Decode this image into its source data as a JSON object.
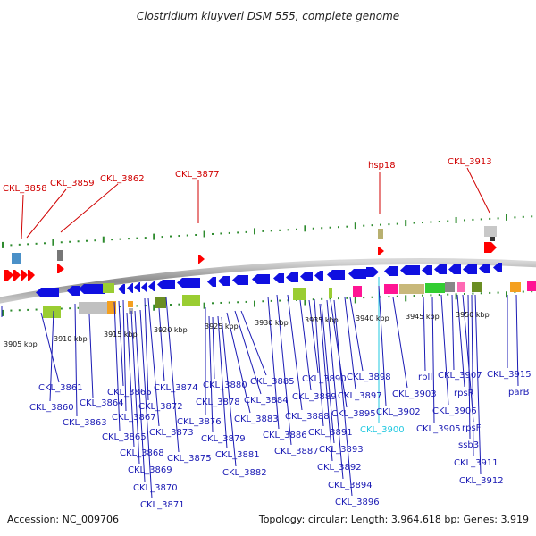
{
  "title": "Clostridium kluyveri DSM 555, complete genome",
  "footer": {
    "accession": "Accession: NC_009706",
    "info": "Topology: circular; Length: 3,964,618 bp; Genes: 3,919"
  },
  "colors": {
    "backbone": "#9a9a9a",
    "tick": "#2e8b2e",
    "forward_strand": "#1010e0",
    "top_label": "#d00000",
    "bottom_label": "#1a1ab4",
    "highlight_label": "#22c8e0"
  },
  "scale_labels": [
    "3905 kbp",
    "3910 kbp",
    "3915 kbp",
    "3920 kbp",
    "3925 kbp",
    "3930 kbp",
    "3935 kbp",
    "3940 kbp",
    "3945 kbp",
    "3950 kbp"
  ],
  "top_labels": [
    {
      "text": "CKL_3858",
      "color": "red"
    },
    {
      "text": "CKL_3859",
      "color": "red"
    },
    {
      "text": "CKL_3862",
      "color": "red"
    },
    {
      "text": "CKL_3877",
      "color": "red"
    },
    {
      "text": "hsp18",
      "color": "red"
    },
    {
      "text": "CKL_3913",
      "color": "red"
    }
  ],
  "bottom_labels": [
    {
      "text": "CKL_3860"
    },
    {
      "text": "CKL_3861"
    },
    {
      "text": "CKL_3863"
    },
    {
      "text": "CKL_3864"
    },
    {
      "text": "CKL_3865"
    },
    {
      "text": "CKL_3866"
    },
    {
      "text": "CKL_3867"
    },
    {
      "text": "CKL_3868"
    },
    {
      "text": "CKL_3869"
    },
    {
      "text": "CKL_3870"
    },
    {
      "text": "CKL_3871"
    },
    {
      "text": "CKL_3872"
    },
    {
      "text": "CKL_3873"
    },
    {
      "text": "CKL_3874"
    },
    {
      "text": "CKL_3875"
    },
    {
      "text": "CKL_3876"
    },
    {
      "text": "CKL_3878"
    },
    {
      "text": "CKL_3879"
    },
    {
      "text": "CKL_3880"
    },
    {
      "text": "CKL_3881"
    },
    {
      "text": "CKL_3882"
    },
    {
      "text": "CKL_3883"
    },
    {
      "text": "CKL_3884"
    },
    {
      "text": "CKL_3885"
    },
    {
      "text": "CKL_3886"
    },
    {
      "text": "CKL_3887"
    },
    {
      "text": "CKL_3888"
    },
    {
      "text": "CKL_3889"
    },
    {
      "text": "CKL_3890"
    },
    {
      "text": "CKL_3891"
    },
    {
      "text": "CKL_3892"
    },
    {
      "text": "CKL_3893"
    },
    {
      "text": "CKL_3894"
    },
    {
      "text": "CKL_3895"
    },
    {
      "text": "CKL_3896"
    },
    {
      "text": "CKL_3897"
    },
    {
      "text": "CKL_3898"
    },
    {
      "text": "CKL_3900",
      "highlight": true
    },
    {
      "text": "CKL_3902"
    },
    {
      "text": "CKL_3903"
    },
    {
      "text": "rplI"
    },
    {
      "text": "CKL_3905"
    },
    {
      "text": "CKL_3906"
    },
    {
      "text": "CKL_3907"
    },
    {
      "text": "rpsR"
    },
    {
      "text": "rpsF"
    },
    {
      "text": "ssb3"
    },
    {
      "text": "CKL_3911"
    },
    {
      "text": "CKL_3912"
    },
    {
      "text": "CKL_3915"
    },
    {
      "text": "parB"
    }
  ]
}
